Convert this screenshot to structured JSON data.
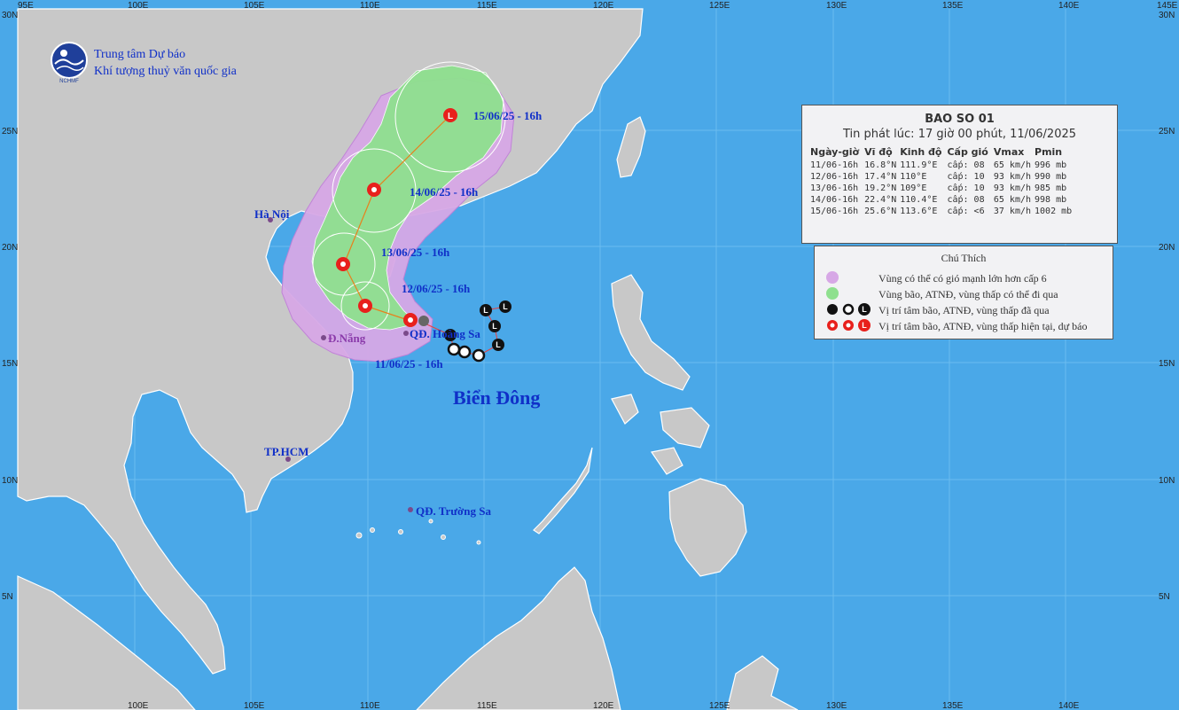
{
  "agency": {
    "line1": "Trung tâm Dự báo",
    "line2": "Khí tượng thuỷ văn quốc gia"
  },
  "axes": {
    "top_lon_labels": [
      "95E",
      "100E",
      "105E",
      "110E",
      "115E",
      "120E",
      "125E",
      "130E",
      "135E",
      "140E",
      "145E"
    ],
    "bottom_lon_labels": [
      "100E",
      "105E",
      "110E",
      "115E",
      "120E",
      "125E",
      "130E",
      "135E",
      "140E"
    ],
    "lat_labels": [
      "30N",
      "25N",
      "20N",
      "15N",
      "10N",
      "5N"
    ]
  },
  "places": {
    "hanoi": "Hà Nội",
    "danang": "Đ.Nẵng",
    "hcm": "TP.HCM",
    "hoangsa": "QĐ. Hoàng Sa",
    "truongsa": "QĐ. Trường Sa",
    "sea": "Biển Đông"
  },
  "storm_labels": {
    "t11": "11/06/25 - 16h",
    "t12": "12/06/25 - 16h",
    "t13": "13/06/25 - 16h",
    "t14": "14/06/25 - 16h",
    "t15": "15/06/25 - 16h"
  },
  "info": {
    "title": "BAO SO 01",
    "subtitle": "Tin phát lúc: 17 giờ 00 phút, 11/06/2025",
    "headers": [
      "Ngày-giờ",
      "Vĩ độ",
      "Kinh độ",
      "Cấp gió",
      "Vmax",
      "Pmin"
    ],
    "rows": [
      [
        "11/06-16h",
        "16.8°N",
        "111.9°E",
        "cấp: 08",
        "65 km/h",
        "996 mb"
      ],
      [
        "12/06-16h",
        "17.4°N",
        "110°E",
        "cấp: 10",
        "93 km/h",
        "990 mb"
      ],
      [
        "13/06-16h",
        "19.2°N",
        "109°E",
        "cấp: 10",
        "93 km/h",
        "985 mb"
      ],
      [
        "14/06-16h",
        "22.4°N",
        "110.4°E",
        "cấp: 08",
        "65 km/h",
        "998 mb"
      ],
      [
        "15/06-16h",
        "25.6°N",
        "113.6°E",
        "cấp: <6",
        "37 km/h",
        "1002 mb"
      ]
    ]
  },
  "legend": {
    "title": "Chú Thích",
    "items": [
      "Vùng có thể có gió mạnh lớn hơn cấp 6",
      "Vùng bão, ATNĐ, vùng thấp có thể đi qua",
      "Vị trí tâm bão, ATNĐ, vùng thấp đã qua",
      "Vị trí tâm bão, ATNĐ, vùng thấp hiện tại, dự báo"
    ]
  },
  "colors": {
    "sea": "#4aa8e8",
    "land": "#c8c8c8",
    "risk_zone": "#d7a8e6",
    "track_zone": "#8fe08f",
    "forecast_symbol": "#e8201c",
    "past_symbol": "#111111",
    "label_blue": "#1030c8"
  }
}
